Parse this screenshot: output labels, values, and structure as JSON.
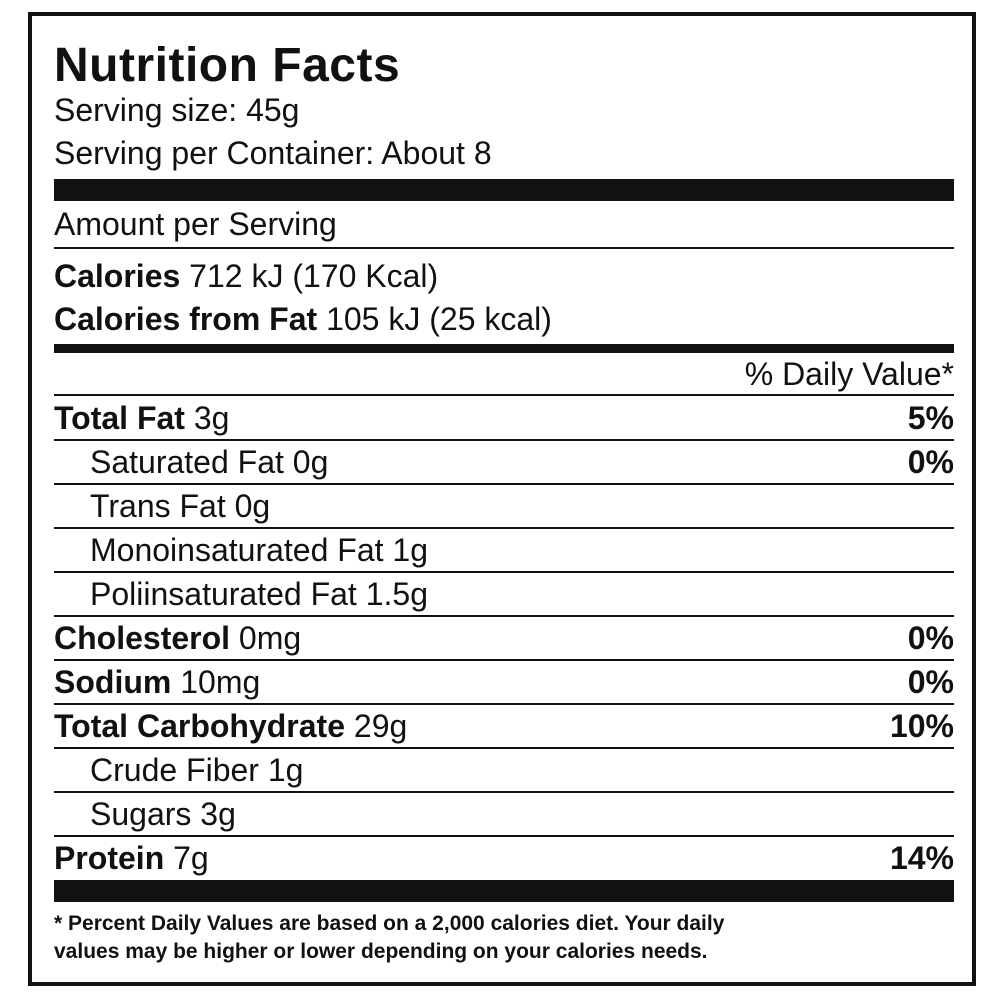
{
  "header": {
    "title": "Nutrition Facts",
    "serving_size": "Serving size: 45g",
    "servings_per_container": "Serving per Container: About 8"
  },
  "amount_per_serving": "Amount per Serving",
  "calories": {
    "label": "Calories",
    "value": "712 kJ (170 Kcal)"
  },
  "calories_from_fat": {
    "label": "Calories from Fat",
    "value": "105 kJ (25 kcal)"
  },
  "daily_value_header": "% Daily Value*",
  "nutrients": [
    {
      "name": "Total Fat",
      "amount": "3g",
      "dv": "5%"
    },
    {
      "name": "Saturated Fat",
      "amount": "0g",
      "dv": "0%",
      "sub": true
    },
    {
      "name": "Trans Fat",
      "amount": "0g",
      "sub": true
    },
    {
      "name": "Monoinsaturated Fat",
      "amount": "1g",
      "sub": true
    },
    {
      "name": "Poliinsaturated Fat",
      "amount": "1.5g",
      "sub": true
    },
    {
      "name": "Cholesterol",
      "amount": "0mg",
      "dv": "0%"
    },
    {
      "name": "Sodium",
      "amount": "10mg",
      "dv": "0%"
    },
    {
      "name": "Total Carbohydrate",
      "amount": "29g",
      "dv": "10%"
    },
    {
      "name": "Crude Fiber",
      "amount": "1g",
      "sub": true
    },
    {
      "name": "Sugars",
      "amount": "3g",
      "sub": true
    },
    {
      "name": "Protein",
      "amount": "7g",
      "dv": "14%"
    }
  ],
  "footnote": [
    "* Percent Daily Values are based on a 2,000 calories diet. Your daily",
    "values may be higher or lower depending on your calories needs."
  ]
}
